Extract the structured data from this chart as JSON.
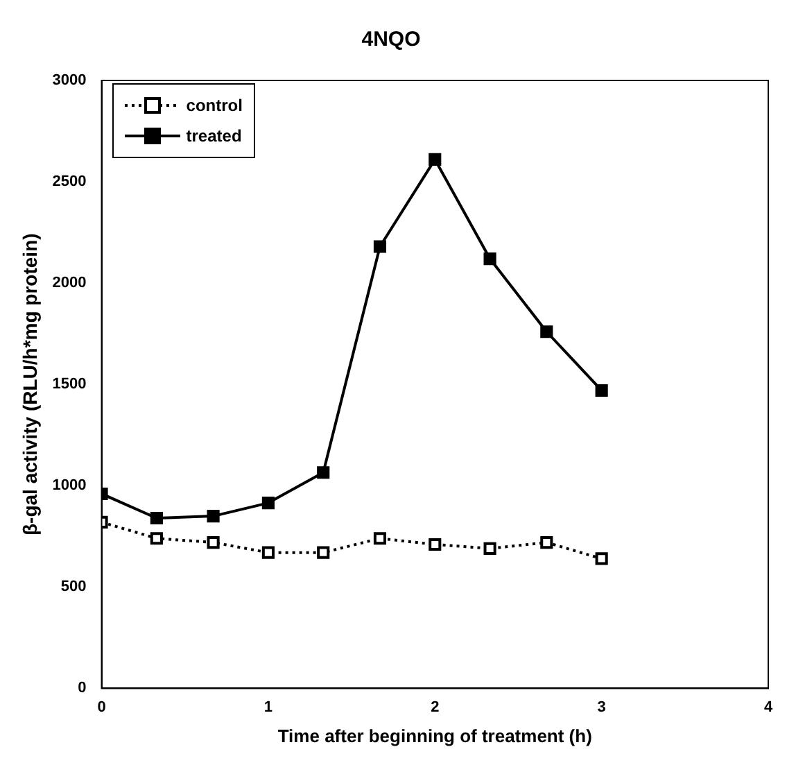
{
  "chart_data": {
    "type": "line",
    "title": "4NQO",
    "xlabel": "Time after beginning of treatment (h)",
    "ylabel": "β-gal activity (RLU/h*mg protein)",
    "xlim": [
      0,
      4
    ],
    "xticks": [
      0,
      1,
      2,
      3,
      4
    ],
    "ylim": [
      0,
      3000
    ],
    "yticks": [
      0,
      500,
      1000,
      1500,
      2000,
      2500,
      3000
    ],
    "x": [
      0,
      0.33,
      0.67,
      1,
      1.33,
      1.67,
      2,
      2.33,
      2.67,
      3
    ],
    "series": [
      {
        "name": "control",
        "color": "#000000",
        "line_style": "dotted",
        "values": [
          820,
          740,
          720,
          670,
          670,
          740,
          710,
          690,
          720,
          640
        ]
      },
      {
        "name": "treated",
        "color": "#000000",
        "line_style": "solid",
        "values": [
          960,
          840,
          850,
          915,
          1065,
          2180,
          2610,
          2120,
          1760,
          1470
        ]
      }
    ],
    "marker": "square",
    "grid": false,
    "legend": "top left"
  }
}
